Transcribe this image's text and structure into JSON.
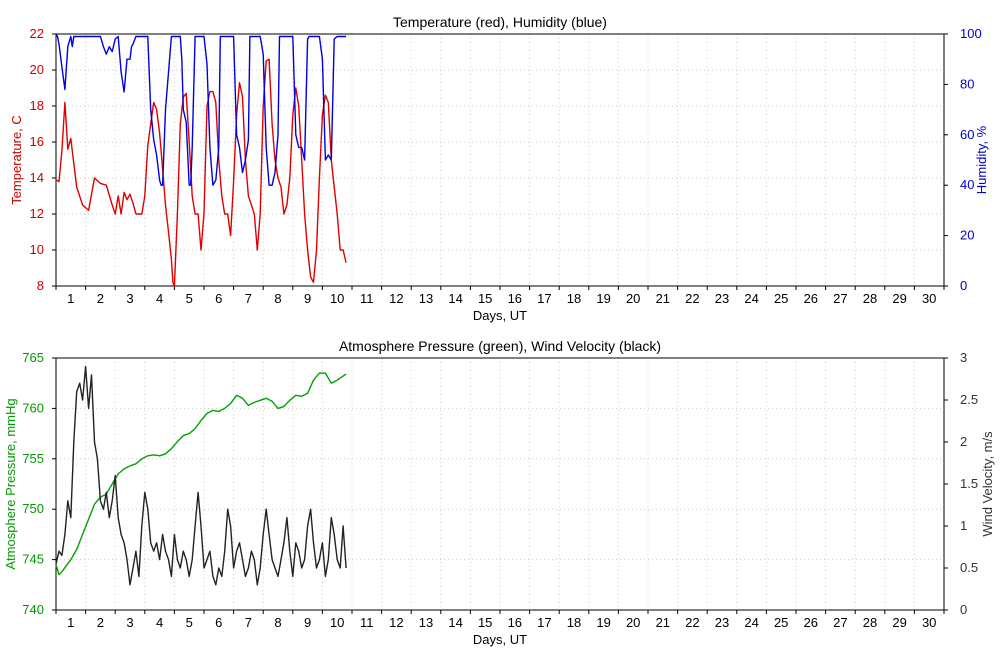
{
  "chart_data": [
    {
      "type": "line",
      "title": "Temperature (red), Humidity (blue)",
      "xlabel": "Days, UT",
      "ylabel_left": "Temperature, C",
      "ylabel_right": "Humidity, %",
      "xlim": [
        0.5,
        30.5
      ],
      "ylim_left": [
        8,
        22
      ],
      "ylim_right": [
        0,
        100
      ],
      "x_ticks": [
        "1",
        "2",
        "3",
        "4",
        "5",
        "6",
        "7",
        "8",
        "9",
        "10",
        "11",
        "12",
        "13",
        "14",
        "15",
        "16",
        "17",
        "18",
        "19",
        "20",
        "21",
        "22",
        "23",
        "24",
        "25",
        "26",
        "27",
        "28",
        "29",
        "30"
      ],
      "y_ticks_left": [
        "8",
        "10",
        "12",
        "14",
        "16",
        "18",
        "20",
        "22"
      ],
      "y_ticks_right": [
        "0",
        "20",
        "40",
        "60",
        "80",
        "100"
      ],
      "grid": true,
      "colors": {
        "left": "#e00000",
        "right": "#0000e0",
        "axis_left": "#cc0000",
        "axis_right": "#0000cc"
      },
      "series": [
        {
          "axis": "left",
          "color": "#e00000",
          "x": [
            0.5,
            0.6,
            0.7,
            0.8,
            0.9,
            1.0,
            1.1,
            1.2,
            1.4,
            1.6,
            1.8,
            2.0,
            2.2,
            2.4,
            2.5,
            2.6,
            2.7,
            2.8,
            2.9,
            3.0,
            3.1,
            3.2,
            3.4,
            3.5,
            3.6,
            3.7,
            3.8,
            3.9,
            4.0,
            4.1,
            4.2,
            4.3,
            4.4,
            4.45,
            4.5,
            4.6,
            4.7,
            4.8,
            4.9,
            5.0,
            5.1,
            5.2,
            5.3,
            5.4,
            5.5,
            5.6,
            5.7,
            5.8,
            5.9,
            6.0,
            6.1,
            6.2,
            6.3,
            6.4,
            6.5,
            6.6,
            6.7,
            6.8,
            6.9,
            7.0,
            7.1,
            7.2,
            7.3,
            7.4,
            7.5,
            7.6,
            7.7,
            7.8,
            7.9,
            8.0,
            8.1,
            8.2,
            8.3,
            8.4,
            8.5,
            8.6,
            8.7,
            8.8,
            8.9,
            9.0,
            9.1,
            9.2,
            9.3,
            9.4,
            9.5,
            9.6,
            9.7,
            9.8,
            9.9,
            10.0,
            10.1,
            10.2,
            10.3
          ],
          "y": [
            13.9,
            13.8,
            15.5,
            18.2,
            15.6,
            16.2,
            14.8,
            13.5,
            12.5,
            12.2,
            14.0,
            13.7,
            13.6,
            12.5,
            12.0,
            13.0,
            12.0,
            13.2,
            12.8,
            13.1,
            12.6,
            12.0,
            12.0,
            13.0,
            15.8,
            17.0,
            18.2,
            17.8,
            16.5,
            14.5,
            12.5,
            11.0,
            9.5,
            8.2,
            8.0,
            12.0,
            17.0,
            18.5,
            18.7,
            16.0,
            13.0,
            12.0,
            12.0,
            10.0,
            12.0,
            18.0,
            18.8,
            18.8,
            18.2,
            15.0,
            13.0,
            12.0,
            12.0,
            10.8,
            13.8,
            17.5,
            19.3,
            18.5,
            15.0,
            13.0,
            12.5,
            12.0,
            10.0,
            12.0,
            18.0,
            20.5,
            20.6,
            17.0,
            15.0,
            14.0,
            13.5,
            12.0,
            12.5,
            14.0,
            17.5,
            19.0,
            18.0,
            15.0,
            12.0,
            10.0,
            8.5,
            8.2,
            10.0,
            14.0,
            17.5,
            18.6,
            18.2,
            15.0,
            13.5,
            12.0,
            10.0,
            10.0,
            9.3
          ]
        },
        {
          "axis": "right",
          "color": "#0000e0",
          "x": [
            0.5,
            0.55,
            0.6,
            0.7,
            0.8,
            0.9,
            1.0,
            1.05,
            1.1,
            1.2,
            1.4,
            1.6,
            1.8,
            2.0,
            2.1,
            2.2,
            2.3,
            2.4,
            2.5,
            2.6,
            2.7,
            2.8,
            2.9,
            3.0,
            3.05,
            3.1,
            3.2,
            3.4,
            3.6,
            3.7,
            3.8,
            3.9,
            4.0,
            4.05,
            4.1,
            4.2,
            4.4,
            4.6,
            4.7,
            4.75,
            4.8,
            4.9,
            5.0,
            5.05,
            5.1,
            5.2,
            5.4,
            5.5,
            5.6,
            5.7,
            5.8,
            5.9,
            6.0,
            6.05,
            6.1,
            6.2,
            6.4,
            6.5,
            6.6,
            6.7,
            6.8,
            6.9,
            7.0,
            7.05,
            7.1,
            7.2,
            7.4,
            7.5,
            7.6,
            7.7,
            7.8,
            7.9,
            8.0,
            8.05,
            8.1,
            8.2,
            8.4,
            8.5,
            8.6,
            8.7,
            8.8,
            8.9,
            9.0,
            9.05,
            9.1,
            9.2,
            9.4,
            9.5,
            9.6,
            9.7,
            9.8,
            9.9,
            10.0,
            10.1,
            10.2,
            10.3
          ],
          "y": [
            100,
            99,
            96,
            87,
            78,
            95,
            99,
            95,
            99,
            99,
            99,
            99,
            99,
            99,
            95,
            92,
            95,
            93,
            98,
            99,
            85,
            77,
            90,
            90,
            95,
            96,
            99,
            99,
            99,
            70,
            58,
            52,
            42,
            40,
            40,
            70,
            99,
            99,
            99,
            90,
            70,
            65,
            40,
            40,
            55,
            99,
            99,
            99,
            88,
            55,
            40,
            42,
            55,
            99,
            99,
            99,
            99,
            99,
            60,
            55,
            45,
            50,
            58,
            99,
            99,
            99,
            99,
            92,
            55,
            40,
            40,
            45,
            60,
            99,
            99,
            99,
            99,
            99,
            60,
            55,
            55,
            50,
            98,
            99,
            99,
            99,
            99,
            90,
            50,
            52,
            50,
            98,
            99,
            99,
            99,
            99
          ]
        }
      ]
    },
    {
      "type": "line",
      "title": "Atmosphere Pressure (green), Wind Velocity (black)",
      "xlabel": "Days, UT",
      "ylabel_left": "Atmosphere Pressure, mmHg",
      "ylabel_right": "Wind Velocity, m/s",
      "xlim": [
        0.5,
        30.5
      ],
      "ylim_left": [
        740,
        765
      ],
      "ylim_right": [
        0,
        3
      ],
      "x_ticks": [
        "1",
        "2",
        "3",
        "4",
        "5",
        "6",
        "7",
        "8",
        "9",
        "10",
        "11",
        "12",
        "13",
        "14",
        "15",
        "16",
        "17",
        "18",
        "19",
        "20",
        "21",
        "22",
        "23",
        "24",
        "25",
        "26",
        "27",
        "28",
        "29",
        "30"
      ],
      "y_ticks_left": [
        "740",
        "745",
        "750",
        "755",
        "760",
        "765"
      ],
      "y_ticks_right": [
        "0",
        "0.5",
        "1",
        "1.5",
        "2",
        "2.5",
        "3"
      ],
      "grid": true,
      "colors": {
        "left": "#009900",
        "right": "#222222",
        "axis_left": "#009900",
        "axis_right": "#333333"
      },
      "series": [
        {
          "axis": "left",
          "color": "#00a000",
          "x": [
            0.5,
            0.6,
            0.7,
            0.8,
            1.0,
            1.2,
            1.4,
            1.6,
            1.8,
            2.0,
            2.2,
            2.4,
            2.6,
            2.8,
            3.0,
            3.2,
            3.4,
            3.6,
            3.8,
            4.0,
            4.2,
            4.4,
            4.6,
            4.8,
            5.0,
            5.2,
            5.4,
            5.6,
            5.8,
            6.0,
            6.2,
            6.4,
            6.6,
            6.8,
            7.0,
            7.2,
            7.4,
            7.6,
            7.8,
            8.0,
            8.2,
            8.4,
            8.6,
            8.8,
            9.0,
            9.2,
            9.4,
            9.6,
            9.8,
            10.0,
            10.2,
            10.3
          ],
          "y": [
            744.5,
            743.5,
            743.8,
            744.2,
            745.0,
            746.0,
            747.5,
            749.0,
            750.5,
            751.2,
            751.5,
            752.5,
            753.5,
            754.0,
            754.3,
            754.5,
            755.0,
            755.3,
            755.4,
            755.3,
            755.5,
            756.0,
            756.7,
            757.3,
            757.5,
            758.0,
            758.8,
            759.5,
            759.8,
            759.7,
            760.0,
            760.5,
            761.3,
            761.0,
            760.3,
            760.6,
            760.8,
            761.0,
            760.7,
            760.0,
            760.2,
            760.8,
            761.3,
            761.2,
            761.5,
            762.8,
            763.5,
            763.5,
            762.5,
            762.8,
            763.2,
            763.4
          ]
        },
        {
          "axis": "right",
          "color": "#222222",
          "x": [
            0.5,
            0.6,
            0.7,
            0.8,
            0.9,
            1.0,
            1.1,
            1.2,
            1.3,
            1.4,
            1.5,
            1.6,
            1.7,
            1.8,
            1.9,
            2.0,
            2.1,
            2.2,
            2.3,
            2.4,
            2.5,
            2.6,
            2.7,
            2.8,
            2.9,
            3.0,
            3.1,
            3.2,
            3.3,
            3.4,
            3.5,
            3.6,
            3.7,
            3.8,
            3.9,
            4.0,
            4.1,
            4.2,
            4.3,
            4.4,
            4.5,
            4.6,
            4.7,
            4.8,
            4.9,
            5.0,
            5.1,
            5.2,
            5.3,
            5.4,
            5.5,
            5.6,
            5.7,
            5.8,
            5.9,
            6.0,
            6.1,
            6.2,
            6.3,
            6.4,
            6.5,
            6.6,
            6.7,
            6.8,
            6.9,
            7.0,
            7.1,
            7.2,
            7.3,
            7.4,
            7.5,
            7.6,
            7.7,
            7.8,
            7.9,
            8.0,
            8.1,
            8.2,
            8.3,
            8.4,
            8.5,
            8.6,
            8.7,
            8.8,
            8.9,
            9.0,
            9.1,
            9.2,
            9.3,
            9.4,
            9.5,
            9.6,
            9.7,
            9.8,
            9.9,
            10.0,
            10.1,
            10.2,
            10.3
          ],
          "y": [
            0.55,
            0.7,
            0.65,
            0.9,
            1.3,
            1.1,
            2.0,
            2.6,
            2.7,
            2.5,
            2.9,
            2.4,
            2.8,
            2.0,
            1.8,
            1.3,
            1.2,
            1.4,
            1.1,
            1.3,
            1.6,
            1.1,
            0.9,
            0.8,
            0.6,
            0.3,
            0.5,
            0.7,
            0.4,
            1.0,
            1.4,
            1.2,
            0.8,
            0.7,
            0.8,
            0.6,
            0.9,
            0.7,
            0.6,
            0.4,
            0.9,
            0.6,
            0.5,
            0.7,
            0.6,
            0.4,
            0.6,
            1.0,
            1.4,
            1.0,
            0.5,
            0.6,
            0.7,
            0.4,
            0.3,
            0.5,
            0.4,
            0.7,
            1.2,
            1.0,
            0.5,
            0.7,
            0.8,
            0.6,
            0.4,
            0.5,
            0.7,
            0.6,
            0.3,
            0.5,
            0.9,
            1.2,
            0.9,
            0.6,
            0.5,
            0.4,
            0.6,
            0.8,
            1.1,
            0.7,
            0.4,
            0.8,
            0.7,
            0.5,
            0.6,
            1.0,
            1.2,
            0.8,
            0.5,
            0.6,
            0.8,
            0.4,
            0.6,
            1.1,
            0.9,
            0.6,
            0.5,
            1.0,
            0.5
          ]
        }
      ]
    }
  ]
}
